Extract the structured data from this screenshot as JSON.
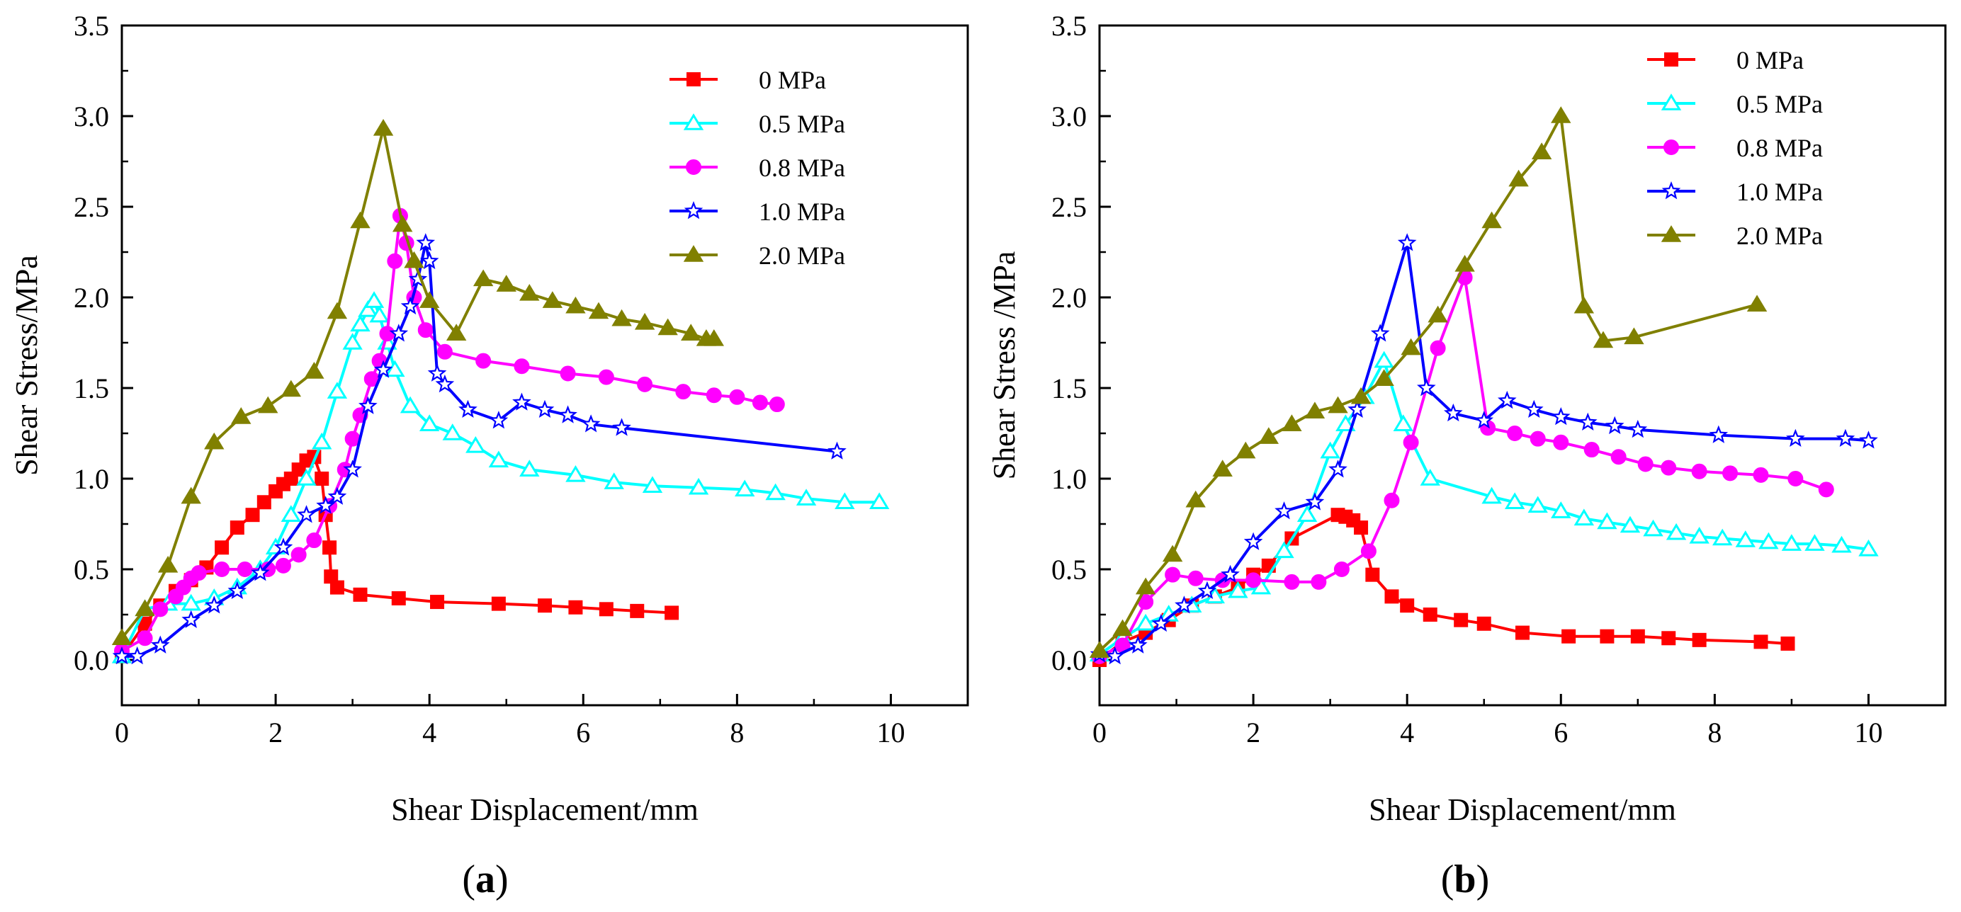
{
  "chart_data": [
    {
      "panel": "a",
      "panel_label": {
        "open": "(",
        "letter": "a",
        "close": ")"
      },
      "type": "line",
      "title": "",
      "xlabel": "Shear Displacement/mm",
      "ylabel": "Shear Stress/MPa",
      "xlim": [
        0,
        11
      ],
      "ylim": [
        -0.25,
        3.5
      ],
      "xticks": [
        0,
        2,
        4,
        6,
        8,
        10
      ],
      "yticks": [
        0.0,
        0.5,
        1.0,
        1.5,
        2.0,
        2.5,
        3.0,
        3.5
      ],
      "xtick_labels": [
        "0",
        "2",
        "4",
        "6",
        "8",
        "10"
      ],
      "ytick_labels": [
        "0.0",
        "0.5",
        "1.0",
        "1.5",
        "2.0",
        "2.5",
        "3.0",
        "3.5"
      ],
      "legend_position": "top-right",
      "series": [
        {
          "name": "0 MPa",
          "color": "#ff0000",
          "marker": "square",
          "filled": true,
          "x": [
            0,
            0.3,
            0.5,
            0.7,
            0.9,
            1.1,
            1.3,
            1.5,
            1.7,
            1.85,
            2.0,
            2.1,
            2.2,
            2.3,
            2.4,
            2.5,
            2.6,
            2.65,
            2.7,
            2.72,
            2.8,
            3.1,
            3.6,
            4.1,
            4.9,
            5.5,
            5.9,
            6.3,
            6.7,
            7.15
          ],
          "y": [
            0.02,
            0.2,
            0.3,
            0.38,
            0.44,
            0.51,
            0.62,
            0.73,
            0.8,
            0.87,
            0.93,
            0.97,
            1.0,
            1.05,
            1.1,
            1.12,
            1.0,
            0.8,
            0.62,
            0.46,
            0.4,
            0.36,
            0.34,
            0.32,
            0.31,
            0.3,
            0.29,
            0.28,
            0.27,
            0.26
          ]
        },
        {
          "name": "0.5 MPa",
          "color": "#00ffff",
          "marker": "triangle",
          "filled": false,
          "x": [
            0,
            0.3,
            0.6,
            0.9,
            1.2,
            1.5,
            1.8,
            2.0,
            2.2,
            2.4,
            2.6,
            2.8,
            3.0,
            3.1,
            3.2,
            3.28,
            3.35,
            3.45,
            3.55,
            3.75,
            4.0,
            4.3,
            4.6,
            4.9,
            5.3,
            5.9,
            6.4,
            6.9,
            7.5,
            8.1,
            8.5,
            8.9,
            9.4,
            9.85
          ],
          "y": [
            0.02,
            0.28,
            0.31,
            0.31,
            0.34,
            0.4,
            0.5,
            0.62,
            0.8,
            1.0,
            1.2,
            1.48,
            1.75,
            1.85,
            1.93,
            1.98,
            1.9,
            1.75,
            1.6,
            1.4,
            1.3,
            1.25,
            1.18,
            1.1,
            1.05,
            1.02,
            0.98,
            0.96,
            0.95,
            0.94,
            0.92,
            0.89,
            0.87,
            0.87
          ]
        },
        {
          "name": "0.8 MPa",
          "color": "#ff00ff",
          "marker": "circle",
          "filled": true,
          "x": [
            0,
            0.3,
            0.5,
            0.7,
            0.8,
            0.9,
            1.0,
            1.3,
            1.6,
            1.9,
            2.1,
            2.3,
            2.5,
            2.7,
            2.9,
            3.0,
            3.1,
            3.25,
            3.35,
            3.45,
            3.55,
            3.62,
            3.7,
            3.8,
            3.95,
            4.2,
            4.7,
            5.2,
            5.8,
            6.3,
            6.8,
            7.3,
            7.7,
            8.0,
            8.3,
            8.52
          ],
          "y": [
            0.05,
            0.12,
            0.28,
            0.35,
            0.4,
            0.45,
            0.48,
            0.5,
            0.5,
            0.5,
            0.52,
            0.58,
            0.66,
            0.85,
            1.05,
            1.22,
            1.35,
            1.55,
            1.65,
            1.8,
            2.2,
            2.45,
            2.3,
            2.0,
            1.82,
            1.7,
            1.65,
            1.62,
            1.58,
            1.56,
            1.52,
            1.48,
            1.46,
            1.45,
            1.42,
            1.41
          ]
        },
        {
          "name": "1.0 MPa",
          "color": "#0000ff",
          "marker": "star",
          "filled": false,
          "x": [
            0,
            0.2,
            0.5,
            0.9,
            1.2,
            1.5,
            1.8,
            2.1,
            2.4,
            2.65,
            2.8,
            3.0,
            3.2,
            3.4,
            3.6,
            3.75,
            3.85,
            3.95,
            4.0,
            4.1,
            4.2,
            4.5,
            4.9,
            5.2,
            5.5,
            5.8,
            6.1,
            6.5,
            9.3
          ],
          "y": [
            0.02,
            0.02,
            0.08,
            0.22,
            0.3,
            0.38,
            0.48,
            0.62,
            0.8,
            0.85,
            0.9,
            1.05,
            1.4,
            1.6,
            1.8,
            1.95,
            2.1,
            2.3,
            2.2,
            1.58,
            1.52,
            1.38,
            1.32,
            1.42,
            1.38,
            1.35,
            1.3,
            1.28,
            1.15
          ]
        },
        {
          "name": "2.0 MPa",
          "color": "#808000",
          "marker": "triangle",
          "filled": true,
          "x": [
            0,
            0.3,
            0.6,
            0.9,
            1.2,
            1.55,
            1.9,
            2.2,
            2.5,
            2.8,
            3.1,
            3.4,
            3.65,
            3.8,
            4.0,
            4.35,
            4.7,
            5.0,
            5.3,
            5.6,
            5.9,
            6.2,
            6.5,
            6.8,
            7.1,
            7.4,
            7.6,
            7.7
          ],
          "y": [
            0.12,
            0.28,
            0.52,
            0.9,
            1.2,
            1.34,
            1.4,
            1.49,
            1.59,
            1.92,
            2.42,
            2.93,
            2.4,
            2.2,
            1.98,
            1.8,
            2.1,
            2.07,
            2.02,
            1.98,
            1.95,
            1.92,
            1.88,
            1.86,
            1.83,
            1.8,
            1.77,
            1.77
          ]
        }
      ]
    },
    {
      "panel": "b",
      "panel_label": {
        "open": "(",
        "letter": "b",
        "close": ")"
      },
      "type": "line",
      "title": "",
      "xlabel": "Shear Displacement/mm",
      "ylabel": "Shear Stress /MPa",
      "xlim": [
        0,
        11
      ],
      "ylim": [
        -0.25,
        3.5
      ],
      "xticks": [
        0,
        2,
        4,
        6,
        8,
        10
      ],
      "yticks": [
        0.0,
        0.5,
        1.0,
        1.5,
        2.0,
        2.5,
        3.0,
        3.5
      ],
      "xtick_labels": [
        "0",
        "2",
        "4",
        "6",
        "8",
        "10"
      ],
      "ytick_labels": [
        "0.0",
        "0.5",
        "1.0",
        "1.5",
        "2.0",
        "2.5",
        "3.0",
        "3.5"
      ],
      "legend_position": "top-right",
      "series": [
        {
          "name": "0 MPa",
          "color": "#ff0000",
          "marker": "square",
          "filled": true,
          "x": [
            0,
            0.3,
            0.6,
            0.9,
            1.2,
            1.5,
            1.8,
            2.0,
            2.2,
            2.5,
            3.1,
            3.2,
            3.3,
            3.4,
            3.55,
            3.8,
            4.0,
            4.3,
            4.7,
            5.0,
            5.5,
            6.1,
            6.6,
            7.0,
            7.4,
            7.8,
            8.6,
            8.95
          ],
          "y": [
            0.0,
            0.1,
            0.15,
            0.22,
            0.3,
            0.35,
            0.4,
            0.47,
            0.52,
            0.67,
            0.8,
            0.79,
            0.77,
            0.73,
            0.47,
            0.35,
            0.3,
            0.25,
            0.22,
            0.2,
            0.15,
            0.13,
            0.13,
            0.13,
            0.12,
            0.11,
            0.1,
            0.09
          ]
        },
        {
          "name": "0.5 MPa",
          "color": "#00ffff",
          "marker": "triangle",
          "filled": false,
          "x": [
            0,
            0.3,
            0.6,
            0.9,
            1.2,
            1.5,
            1.8,
            2.1,
            2.4,
            2.7,
            3.0,
            3.2,
            3.45,
            3.7,
            3.95,
            4.3,
            5.1,
            5.4,
            5.7,
            6.0,
            6.3,
            6.6,
            6.9,
            7.2,
            7.5,
            7.8,
            8.1,
            8.4,
            8.7,
            9.0,
            9.3,
            9.65,
            10.0
          ],
          "y": [
            0.03,
            0.12,
            0.2,
            0.25,
            0.3,
            0.35,
            0.38,
            0.4,
            0.6,
            0.8,
            1.15,
            1.3,
            1.45,
            1.65,
            1.3,
            1.0,
            0.9,
            0.87,
            0.85,
            0.82,
            0.78,
            0.76,
            0.74,
            0.72,
            0.7,
            0.68,
            0.67,
            0.66,
            0.65,
            0.64,
            0.64,
            0.63,
            0.61
          ]
        },
        {
          "name": "0.8 MPa",
          "color": "#ff00ff",
          "marker": "circle",
          "filled": true,
          "x": [
            0,
            0.3,
            0.6,
            0.95,
            1.25,
            1.6,
            2.0,
            2.5,
            2.85,
            3.15,
            3.5,
            3.8,
            4.05,
            4.4,
            4.75,
            5.05,
            5.4,
            5.7,
            6.0,
            6.4,
            6.75,
            7.1,
            7.4,
            7.8,
            8.2,
            8.6,
            9.05,
            9.45
          ],
          "y": [
            0.02,
            0.08,
            0.32,
            0.47,
            0.45,
            0.44,
            0.44,
            0.43,
            0.43,
            0.5,
            0.6,
            0.88,
            1.2,
            1.72,
            2.11,
            1.28,
            1.25,
            1.22,
            1.2,
            1.16,
            1.12,
            1.08,
            1.06,
            1.04,
            1.03,
            1.02,
            1.0,
            0.94
          ]
        },
        {
          "name": "1.0 MPa",
          "color": "#0000ff",
          "marker": "star",
          "filled": false,
          "x": [
            0,
            0.2,
            0.5,
            0.8,
            1.1,
            1.4,
            1.7,
            2.0,
            2.4,
            2.8,
            3.1,
            3.35,
            3.65,
            4.0,
            4.25,
            4.6,
            5.0,
            5.3,
            5.65,
            6.0,
            6.35,
            6.7,
            7.0,
            8.05,
            9.05,
            9.7,
            10.0
          ],
          "y": [
            0.03,
            0.02,
            0.08,
            0.2,
            0.3,
            0.38,
            0.47,
            0.65,
            0.82,
            0.87,
            1.05,
            1.38,
            1.8,
            2.3,
            1.5,
            1.36,
            1.32,
            1.43,
            1.38,
            1.34,
            1.31,
            1.29,
            1.27,
            1.24,
            1.22,
            1.22,
            1.21
          ]
        },
        {
          "name": "2.0 MPa",
          "color": "#808000",
          "marker": "triangle",
          "filled": true,
          "x": [
            0,
            0.3,
            0.6,
            0.95,
            1.25,
            1.6,
            1.9,
            2.2,
            2.5,
            2.8,
            3.1,
            3.4,
            3.7,
            4.05,
            4.4,
            4.75,
            5.1,
            5.45,
            5.75,
            6.0,
            6.3,
            6.55,
            6.95,
            8.55
          ],
          "y": [
            0.05,
            0.17,
            0.4,
            0.58,
            0.88,
            1.05,
            1.15,
            1.23,
            1.3,
            1.37,
            1.4,
            1.45,
            1.55,
            1.72,
            1.9,
            2.18,
            2.42,
            2.65,
            2.8,
            3.0,
            1.95,
            1.76,
            1.78,
            1.96
          ]
        }
      ]
    }
  ]
}
